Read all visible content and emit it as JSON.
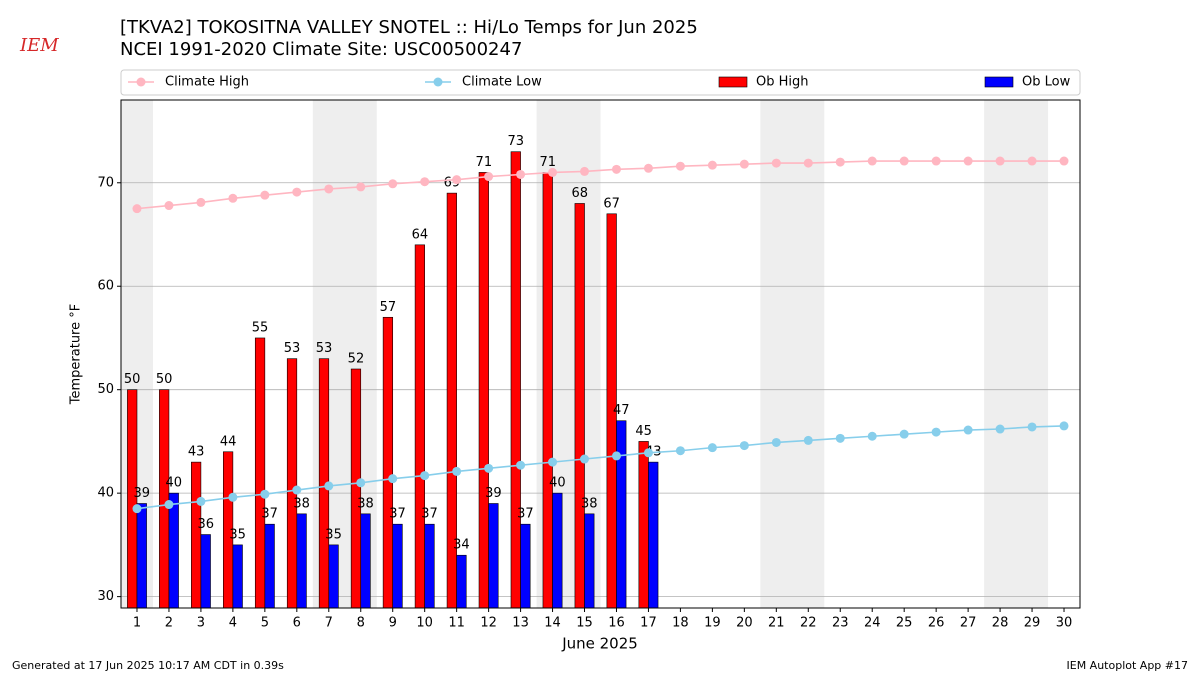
{
  "chart_data": {
    "type": "bar",
    "title": "[TKVA2] TOKOSITNA VALLEY SNOTEL :: Hi/Lo Temps for Jun 2025",
    "subtitle": "NCEI 1991-2020 Climate Site: USC00500247",
    "xlabel": "June 2025",
    "ylabel": "Temperature °F",
    "logo": "IEM",
    "footer_left": "Generated at 17 Jun 2025 10:17 AM CDT in 0.39s",
    "footer_right": "IEM Autoplot App #17",
    "x": [
      1,
      2,
      3,
      4,
      5,
      6,
      7,
      8,
      9,
      10,
      11,
      12,
      13,
      14,
      15,
      16,
      17,
      18,
      19,
      20,
      21,
      22,
      23,
      24,
      25,
      26,
      27,
      28,
      29,
      30
    ],
    "xlim": [
      0.5,
      30.5
    ],
    "xticks": [
      1,
      2,
      3,
      4,
      5,
      6,
      7,
      8,
      9,
      10,
      11,
      12,
      13,
      14,
      15,
      16,
      17,
      18,
      19,
      20,
      21,
      22,
      23,
      24,
      25,
      26,
      27,
      28,
      29,
      30
    ],
    "ylim": [
      28.9,
      78
    ],
    "yticks": [
      30,
      40,
      50,
      60,
      70
    ],
    "grid": true,
    "legend": "top",
    "weekend_spans": [
      [
        0.5,
        1.5
      ],
      [
        6.5,
        8.5
      ],
      [
        13.5,
        15.5
      ],
      [
        20.5,
        22.5
      ],
      [
        27.5,
        29.5
      ]
    ],
    "series": [
      {
        "name": "Climate High",
        "kind": "line",
        "color": "#ffb6c1",
        "values": [
          67.5,
          67.8,
          68.1,
          68.5,
          68.8,
          69.1,
          69.4,
          69.6,
          69.9,
          70.1,
          70.3,
          70.6,
          70.8,
          71.0,
          71.1,
          71.3,
          71.4,
          71.6,
          71.7,
          71.8,
          71.9,
          71.9,
          72.0,
          72.1,
          72.1,
          72.1,
          72.1,
          72.1,
          72.1,
          72.1
        ]
      },
      {
        "name": "Climate Low",
        "kind": "line",
        "color": "#87ceeb",
        "values": [
          38.5,
          38.9,
          39.2,
          39.6,
          39.9,
          40.3,
          40.7,
          41.0,
          41.4,
          41.7,
          42.1,
          42.4,
          42.7,
          43.0,
          43.3,
          43.6,
          43.9,
          44.1,
          44.4,
          44.6,
          44.9,
          45.1,
          45.3,
          45.5,
          45.7,
          45.9,
          46.1,
          46.2,
          46.4,
          46.5
        ]
      },
      {
        "name": "Ob High",
        "kind": "bar",
        "color": "#ff0000",
        "values": [
          50,
          50,
          43,
          44,
          55,
          53,
          53,
          52,
          57,
          64,
          69,
          71,
          73,
          71,
          68,
          67,
          45,
          null,
          null,
          null,
          null,
          null,
          null,
          null,
          null,
          null,
          null,
          null,
          null,
          null
        ]
      },
      {
        "name": "Ob Low",
        "kind": "bar",
        "color": "#0000ff",
        "values": [
          39,
          40,
          36,
          35,
          37,
          38,
          35,
          38,
          37,
          37,
          34,
          39,
          37,
          40,
          38,
          47,
          43,
          null,
          null,
          null,
          null,
          null,
          null,
          null,
          null,
          null,
          null,
          null,
          null,
          null
        ]
      }
    ]
  }
}
